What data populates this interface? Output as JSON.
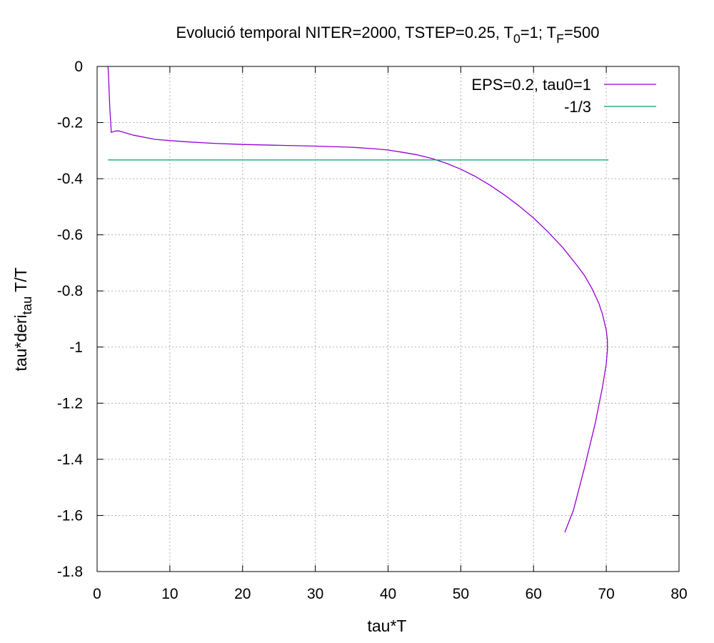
{
  "chart_data": {
    "type": "line",
    "title": {
      "parts": [
        {
          "text": "Evolució temporal NITER=2000, TSTEP=0.25, T",
          "shift": "normal"
        },
        {
          "text": "0",
          "shift": "sub"
        },
        {
          "text": "=1; T",
          "shift": "normal"
        },
        {
          "text": "F",
          "shift": "sub"
        },
        {
          "text": "=500",
          "shift": "normal"
        }
      ]
    },
    "xlabel": "tau*T",
    "ylabel": {
      "parts": [
        {
          "text": "tau*deri",
          "shift": "normal"
        },
        {
          "text": "tau",
          "shift": "sub"
        },
        {
          "text": " T/T",
          "shift": "normal"
        }
      ]
    },
    "xlim": [
      0,
      80
    ],
    "ylim": [
      -1.8,
      0
    ],
    "xticks": [
      0,
      10,
      20,
      30,
      40,
      50,
      60,
      70,
      80
    ],
    "yticks": [
      0,
      -0.2,
      -0.4,
      -0.6,
      -0.8,
      -1,
      -1.2,
      -1.4,
      -1.6,
      -1.8
    ],
    "grid": true,
    "legend_position": "top-right",
    "series": [
      {
        "name": "EPS=0.2, tau0=1",
        "color": "#9400d3",
        "points": [
          [
            1.5,
            0
          ],
          [
            1.6,
            -0.05
          ],
          [
            1.75,
            -0.15
          ],
          [
            1.95,
            -0.235
          ],
          [
            2.5,
            -0.23
          ],
          [
            3,
            -0.23
          ],
          [
            5,
            -0.245
          ],
          [
            8,
            -0.26
          ],
          [
            12,
            -0.268
          ],
          [
            16,
            -0.274
          ],
          [
            20,
            -0.278
          ],
          [
            25,
            -0.281
          ],
          [
            30,
            -0.284
          ],
          [
            35,
            -0.288
          ],
          [
            38,
            -0.293
          ],
          [
            40,
            -0.298
          ],
          [
            42,
            -0.306
          ],
          [
            44,
            -0.315
          ],
          [
            46,
            -0.328
          ],
          [
            48,
            -0.345
          ],
          [
            50,
            -0.366
          ],
          [
            52,
            -0.392
          ],
          [
            54,
            -0.423
          ],
          [
            56,
            -0.458
          ],
          [
            58,
            -0.497
          ],
          [
            60,
            -0.54
          ],
          [
            62,
            -0.59
          ],
          [
            64,
            -0.645
          ],
          [
            66,
            -0.71
          ],
          [
            67,
            -0.745
          ],
          [
            68,
            -0.79
          ],
          [
            69,
            -0.845
          ],
          [
            69.5,
            -0.885
          ],
          [
            70,
            -0.94
          ],
          [
            70.15,
            -0.975
          ],
          [
            70.15,
            -1.01
          ],
          [
            70,
            -1.06
          ],
          [
            69.5,
            -1.14
          ],
          [
            68.5,
            -1.27
          ],
          [
            67,
            -1.43
          ],
          [
            65.5,
            -1.58
          ],
          [
            64.3,
            -1.66
          ]
        ]
      },
      {
        "name": "-1/3",
        "color": "#009e73",
        "points": [
          [
            1.5,
            -0.3333
          ],
          [
            70.3,
            -0.3333
          ]
        ]
      }
    ]
  }
}
